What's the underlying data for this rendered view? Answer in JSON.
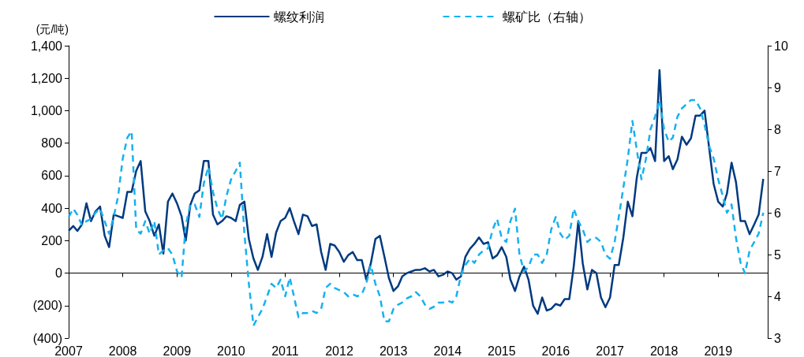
{
  "chart_data": {
    "type": "line",
    "ylabel": "(元/吨)",
    "legend": "top",
    "marker": "none",
    "x": [
      "2007-01",
      "2007-02",
      "2007-03",
      "2007-04",
      "2007-05",
      "2007-06",
      "2007-07",
      "2007-08",
      "2007-09",
      "2007-10",
      "2007-11",
      "2007-12",
      "2008-01",
      "2008-02",
      "2008-03",
      "2008-04",
      "2008-05",
      "2008-06",
      "2008-07",
      "2008-08",
      "2008-09",
      "2008-10",
      "2008-11",
      "2008-12",
      "2009-01",
      "2009-02",
      "2009-03",
      "2009-04",
      "2009-05",
      "2009-06",
      "2009-07",
      "2009-08",
      "2009-09",
      "2009-10",
      "2009-11",
      "2009-12",
      "2010-01",
      "2010-02",
      "2010-03",
      "2010-04",
      "2010-05",
      "2010-06",
      "2010-07",
      "2010-08",
      "2010-09",
      "2010-10",
      "2010-11",
      "2010-12",
      "2011-01",
      "2011-02",
      "2011-03",
      "2011-04",
      "2011-05",
      "2011-06",
      "2011-07",
      "2011-08",
      "2011-09",
      "2011-10",
      "2011-11",
      "2011-12",
      "2012-01",
      "2012-02",
      "2012-03",
      "2012-04",
      "2012-05",
      "2012-06",
      "2012-07",
      "2012-08",
      "2012-09",
      "2012-10",
      "2012-11",
      "2012-12",
      "2013-01",
      "2013-02",
      "2013-03",
      "2013-04",
      "2013-05",
      "2013-06",
      "2013-07",
      "2013-08",
      "2013-09",
      "2013-10",
      "2013-11",
      "2013-12",
      "2014-01",
      "2014-02",
      "2014-03",
      "2014-04",
      "2014-05",
      "2014-06",
      "2014-07",
      "2014-08",
      "2014-09",
      "2014-10",
      "2014-11",
      "2014-12",
      "2015-01",
      "2015-02",
      "2015-03",
      "2015-04",
      "2015-05",
      "2015-06",
      "2015-07",
      "2015-08",
      "2015-09",
      "2015-10",
      "2015-11",
      "2015-12",
      "2016-01",
      "2016-02",
      "2016-03",
      "2016-04",
      "2016-05",
      "2016-06",
      "2016-07",
      "2016-08",
      "2016-09",
      "2016-10",
      "2016-11",
      "2016-12",
      "2017-01",
      "2017-02",
      "2017-03",
      "2017-04",
      "2017-05",
      "2017-06",
      "2017-07",
      "2017-08",
      "2017-09",
      "2017-10",
      "2017-11",
      "2017-12",
      "2018-01",
      "2018-02",
      "2018-03",
      "2018-04",
      "2018-05",
      "2018-06",
      "2018-07",
      "2018-08",
      "2018-09",
      "2018-10",
      "2018-11",
      "2018-12",
      "2019-01",
      "2019-02",
      "2019-03",
      "2019-04",
      "2019-05",
      "2019-06",
      "2019-07",
      "2019-08",
      "2019-09",
      "2019-10",
      "2019-11"
    ],
    "xlim": [
      "2007-01",
      "2019-12"
    ],
    "xticks": [
      "2007",
      "2008",
      "2009",
      "2010",
      "2011",
      "2012",
      "2013",
      "2014",
      "2015",
      "2016",
      "2017",
      "2018",
      "2019"
    ],
    "ylim": [
      -400,
      1400
    ],
    "yticks": [
      {
        "value": -400,
        "label": "(400)"
      },
      {
        "value": -200,
        "label": "(200)"
      },
      0,
      200,
      400,
      600,
      800,
      {
        "value": 1000,
        "label": "1,000"
      },
      {
        "value": 1200,
        "label": "1,200"
      },
      {
        "value": 1400,
        "label": "1,400"
      }
    ],
    "y2lim": [
      3,
      10
    ],
    "y2ticks": [
      3,
      4,
      5,
      6,
      7,
      8,
      9,
      10
    ],
    "series": [
      {
        "name": "螺纹利润",
        "color": "#003a80",
        "line_style": "solid",
        "values": [
          260,
          290,
          260,
          300,
          430,
          320,
          380,
          410,
          230,
          160,
          360,
          350,
          340,
          500,
          500,
          630,
          690,
          380,
          320,
          230,
          300,
          120,
          440,
          490,
          430,
          350,
          200,
          420,
          490,
          510,
          690,
          690,
          360,
          300,
          320,
          350,
          340,
          320,
          420,
          440,
          210,
          90,
          20,
          100,
          240,
          100,
          250,
          320,
          340,
          400,
          320,
          240,
          360,
          350,
          290,
          300,
          130,
          20,
          180,
          170,
          130,
          70,
          110,
          130,
          80,
          80,
          -40,
          60,
          210,
          230,
          100,
          -30,
          -110,
          -80,
          -20,
          0,
          10,
          20,
          20,
          30,
          10,
          20,
          -20,
          -10,
          10,
          0,
          -40,
          -20,
          100,
          150,
          180,
          220,
          180,
          190,
          90,
          110,
          160,
          100,
          -40,
          -110,
          -20,
          40,
          -40,
          -200,
          -250,
          -150,
          -230,
          -220,
          -190,
          -200,
          -160,
          -160,
          40,
          320,
          60,
          -100,
          20,
          0,
          -150,
          -210,
          -150,
          50,
          50,
          220,
          440,
          350,
          590,
          740,
          740,
          770,
          690,
          1250,
          690,
          720,
          640,
          700,
          840,
          790,
          830,
          970,
          970,
          1000,
          770,
          550,
          440,
          410,
          490,
          680,
          560,
          320,
          320,
          240,
          300,
          360,
          580
        ]
      },
      {
        "name": "螺矿比（右轴）",
        "color": "#16b1ef",
        "line_style": "dashed",
        "axis": "y2",
        "values": [
          5.9,
          6.1,
          5.95,
          5.7,
          5.8,
          5.85,
          6.0,
          6.1,
          5.8,
          5.5,
          5.9,
          6.4,
          7.3,
          7.8,
          7.95,
          5.6,
          5.5,
          5.8,
          5.5,
          5.8,
          5.0,
          5.1,
          5.15,
          5.0,
          4.6,
          4.45,
          5.7,
          6.2,
          6.2,
          5.9,
          6.7,
          7.1,
          6.5,
          6.1,
          5.85,
          6.4,
          6.8,
          7.0,
          7.2,
          5.5,
          4.3,
          3.3,
          3.5,
          3.7,
          4.0,
          4.3,
          4.2,
          4.4,
          4.0,
          4.45,
          4.0,
          3.5,
          3.6,
          3.6,
          3.65,
          3.6,
          3.7,
          4.2,
          4.3,
          4.2,
          4.15,
          4.1,
          4.0,
          4.05,
          4.0,
          4.05,
          4.3,
          4.75,
          4.3,
          4.0,
          3.4,
          3.4,
          3.7,
          3.8,
          3.85,
          3.95,
          4.0,
          4.1,
          4.0,
          3.8,
          3.7,
          3.75,
          3.85,
          3.85,
          3.9,
          3.85,
          4.0,
          4.5,
          4.75,
          4.9,
          4.8,
          5.0,
          5.1,
          5.15,
          5.6,
          5.85,
          5.4,
          5.3,
          5.8,
          6.1,
          5.0,
          4.6,
          4.7,
          5.0,
          5.0,
          4.8,
          5.0,
          5.6,
          5.9,
          5.5,
          5.35,
          5.45,
          6.1,
          5.8,
          5.6,
          5.3,
          5.4,
          5.4,
          5.3,
          5.0,
          4.9,
          5.3,
          5.9,
          6.6,
          7.3,
          8.2,
          7.5,
          6.8,
          7.3,
          8.0,
          8.3,
          8.7,
          8.0,
          7.7,
          7.8,
          8.3,
          8.5,
          8.6,
          8.7,
          8.7,
          8.5,
          8.1,
          7.6,
          7.3,
          6.8,
          6.4,
          6.0,
          6.2,
          5.4,
          4.8,
          4.55,
          5.1,
          5.3,
          5.5,
          6.0
        ]
      }
    ]
  }
}
